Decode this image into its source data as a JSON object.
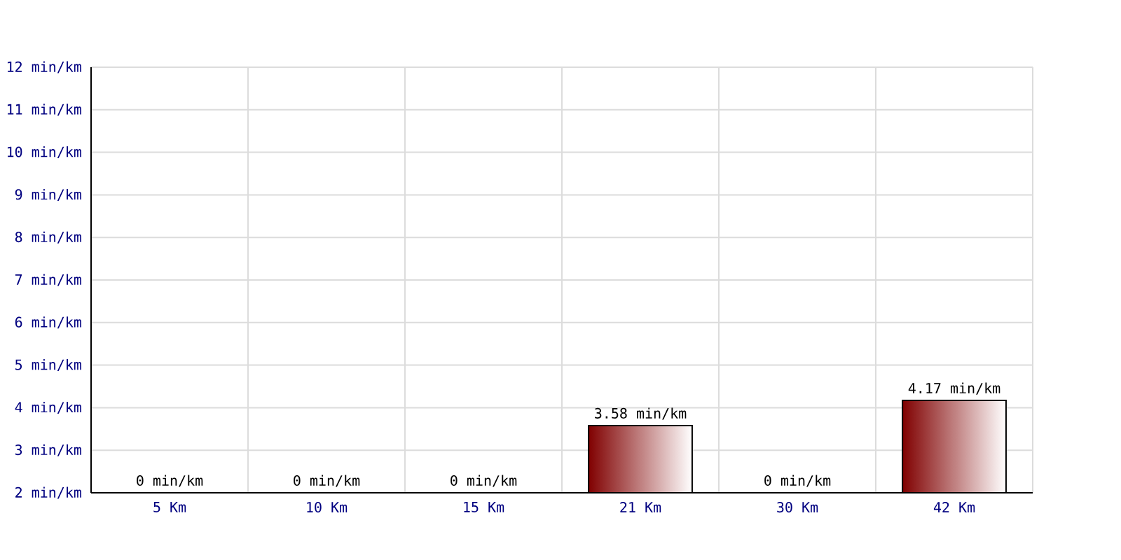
{
  "chart_data": {
    "type": "bar",
    "categories": [
      "5 Km",
      "10 Km",
      "15 Km",
      "21 Km",
      "30 Km",
      "42 Km"
    ],
    "values": [
      null,
      null,
      null,
      3.58,
      null,
      4.17
    ],
    "value_labels": [
      "0 min/km",
      "0 min/km",
      "0 min/km",
      "3.58 min/km",
      "0 min/km",
      "4.17 min/km"
    ],
    "color": "#800000",
    "ylim": [
      2,
      12
    ],
    "yticks": [
      {
        "value": 2,
        "label": "2 min/km"
      },
      {
        "value": 3,
        "label": "3 min/km"
      },
      {
        "value": 4,
        "label": "4 min/km"
      },
      {
        "value": 5,
        "label": "5 min/km"
      },
      {
        "value": 6,
        "label": "6 min/km"
      },
      {
        "value": 7,
        "label": "7 min/km"
      },
      {
        "value": 8,
        "label": "8 min/km"
      },
      {
        "value": 9,
        "label": "9 min/km"
      },
      {
        "value": 10,
        "label": "10 min/km"
      },
      {
        "value": 11,
        "label": "11 min/km"
      },
      {
        "value": 12,
        "label": "12 min/km"
      }
    ],
    "grid": true
  }
}
